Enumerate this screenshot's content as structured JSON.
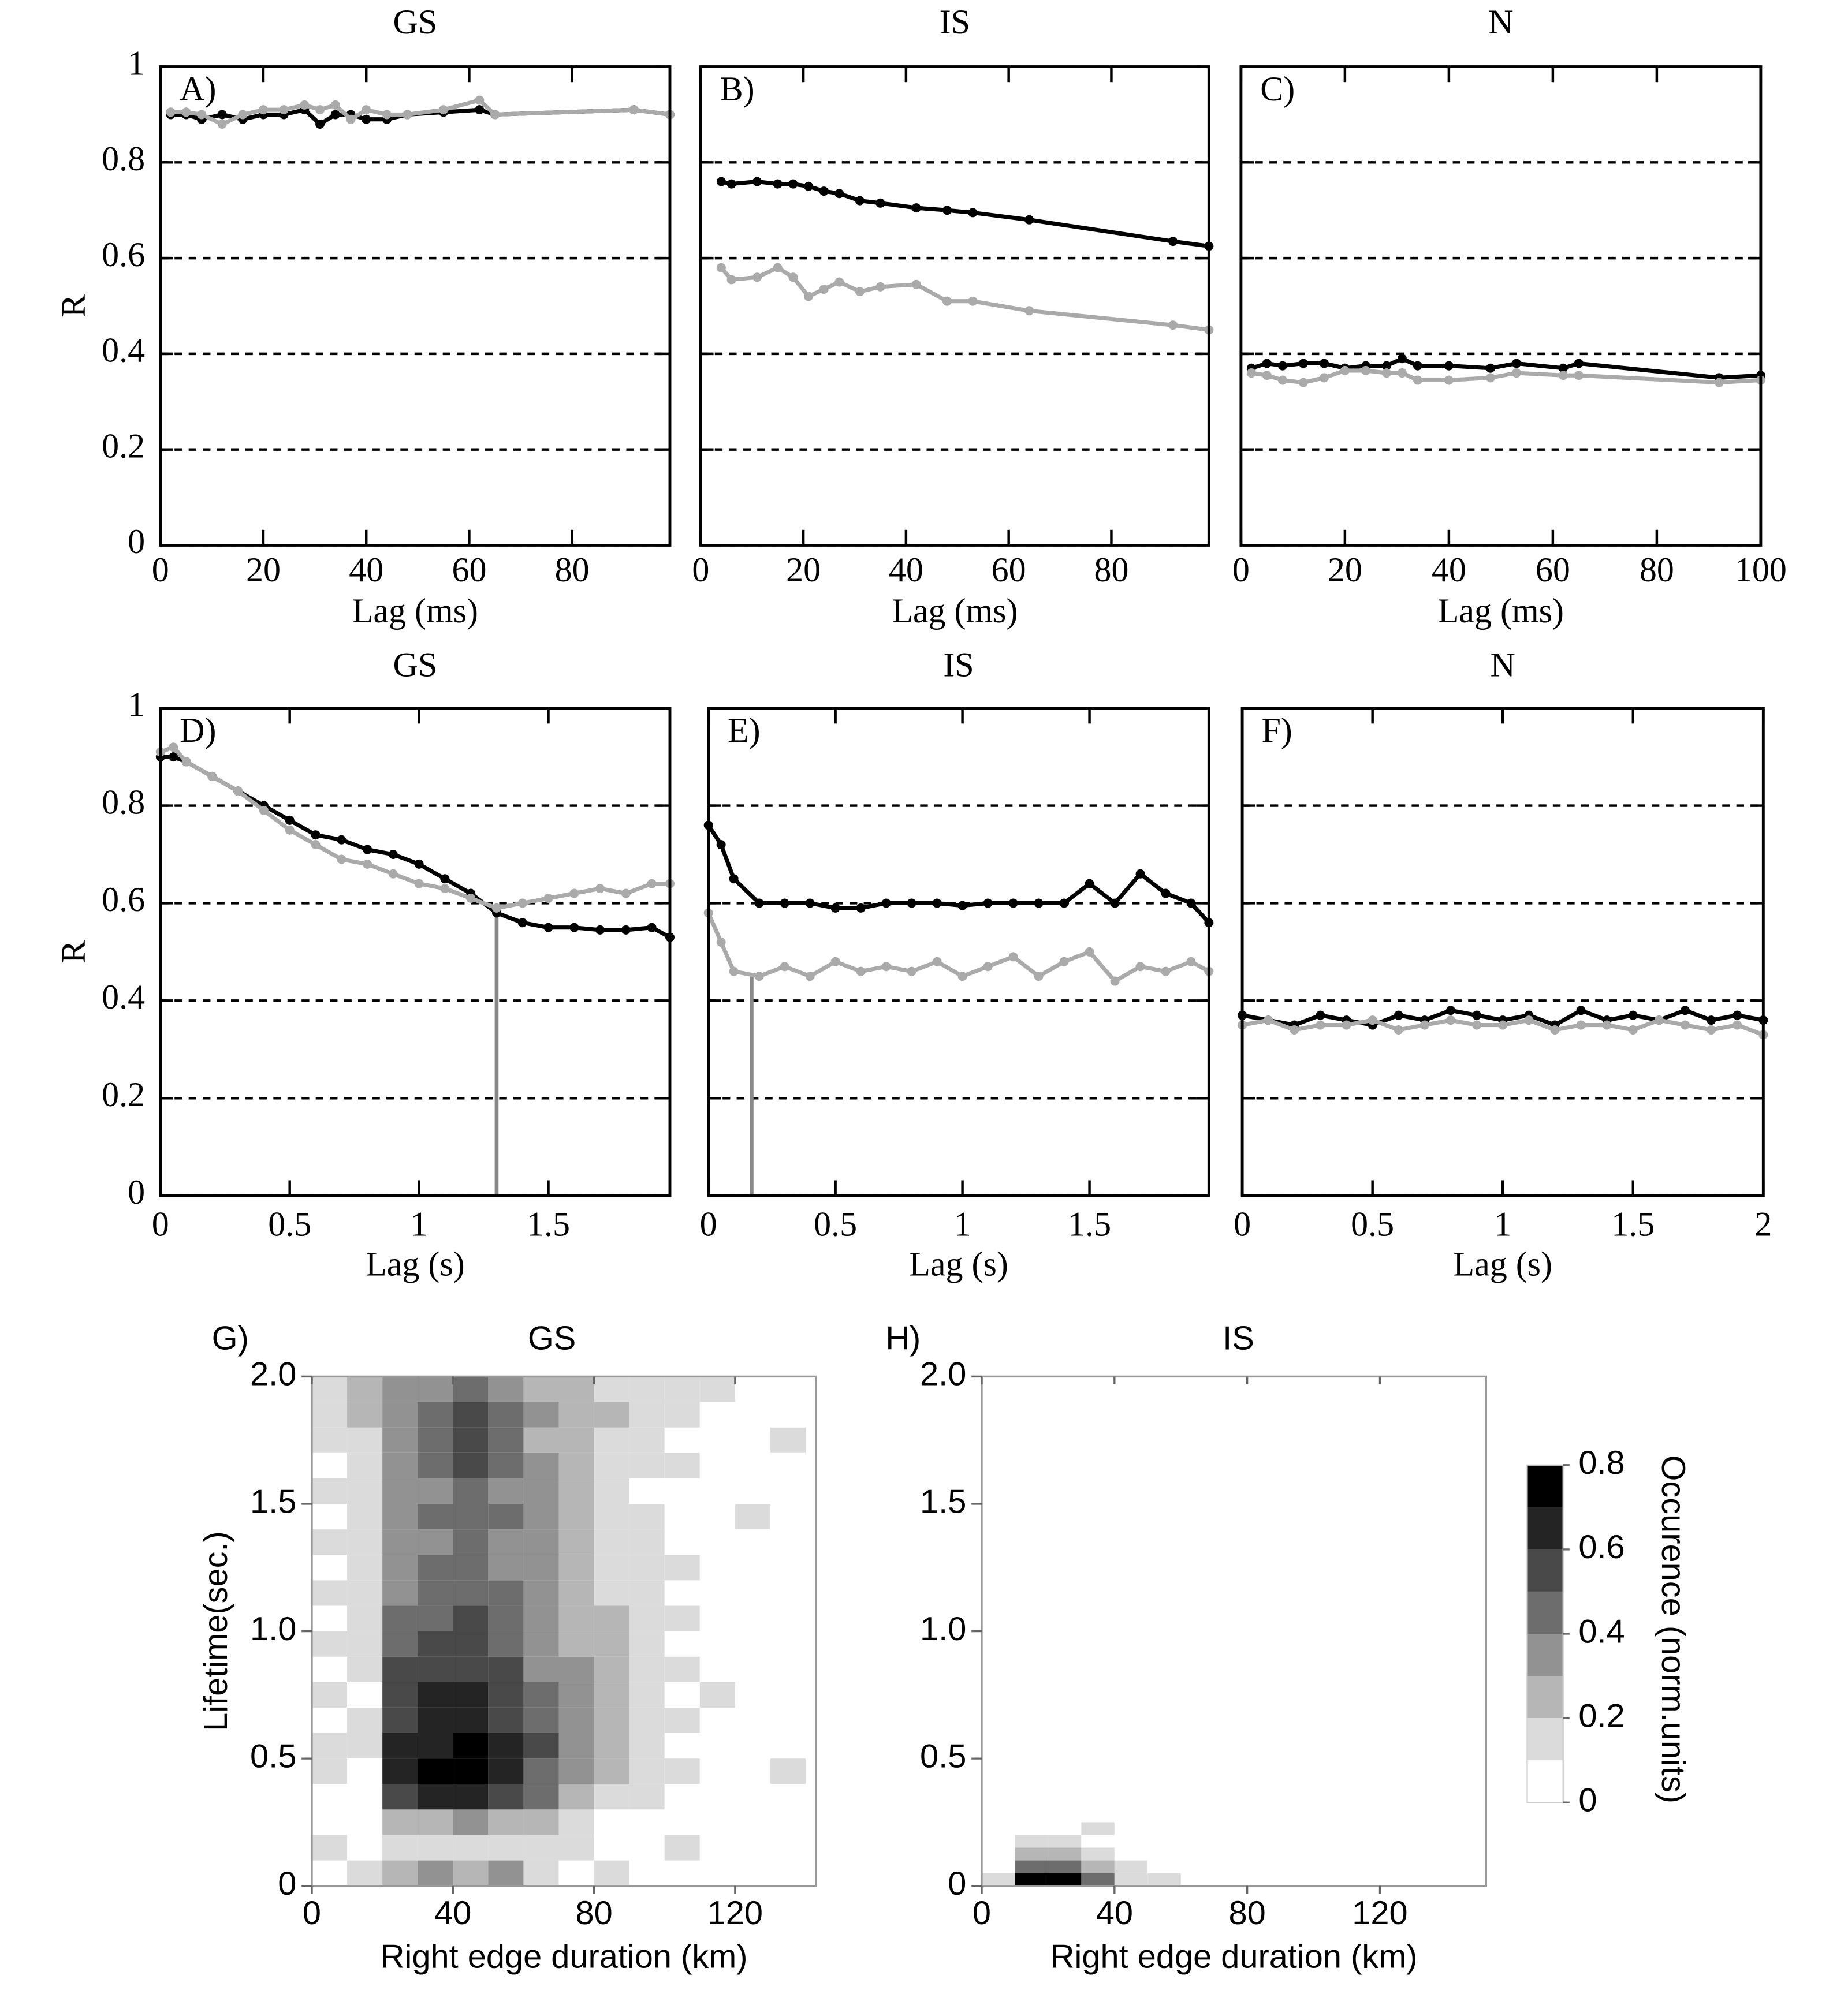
{
  "chart_data": [
    {
      "type": "line",
      "title": "GS",
      "panel_label": "A)",
      "xlabel": "Lag (ms)",
      "ylabel": "R",
      "x": [
        2,
        5,
        8,
        12,
        16,
        20,
        24,
        28,
        31,
        34,
        37,
        40,
        44,
        48,
        55,
        62,
        65,
        92,
        99
      ],
      "series": [
        {
          "color": "#000000",
          "values": [
            0.9,
            0.9,
            0.89,
            0.9,
            0.89,
            0.9,
            0.9,
            0.91,
            0.88,
            0.9,
            0.9,
            0.89,
            0.89,
            0.9,
            0.905,
            0.91,
            0.9,
            0.91,
            0.9
          ]
        },
        {
          "color": "#aaaaaa",
          "values": [
            0.905,
            0.905,
            0.9,
            0.88,
            0.9,
            0.91,
            0.91,
            0.92,
            0.91,
            0.92,
            0.89,
            0.91,
            0.9,
            0.9,
            0.91,
            0.93,
            0.9,
            0.91,
            0.9
          ]
        }
      ],
      "xlim": [
        0,
        99
      ],
      "ylim": [
        0,
        1
      ],
      "xticks": [
        0,
        20,
        40,
        60,
        80
      ],
      "yticks": [
        0,
        0.2,
        0.4,
        0.6,
        0.8,
        1
      ],
      "grid": true
    },
    {
      "type": "line",
      "title": "IS",
      "panel_label": "B)",
      "xlabel": "Lag (ms)",
      "x": [
        4,
        6,
        11,
        15,
        18,
        21,
        24,
        27,
        31,
        35,
        42,
        48,
        53,
        64,
        92,
        99
      ],
      "series": [
        {
          "color": "#000000",
          "values": [
            0.76,
            0.755,
            0.76,
            0.755,
            0.755,
            0.75,
            0.74,
            0.735,
            0.72,
            0.715,
            0.705,
            0.7,
            0.695,
            0.68,
            0.635,
            0.625
          ]
        },
        {
          "color": "#aaaaaa",
          "values": [
            0.58,
            0.555,
            0.56,
            0.58,
            0.56,
            0.52,
            0.535,
            0.55,
            0.53,
            0.54,
            0.545,
            0.51,
            0.51,
            0.49,
            0.46,
            0.45
          ]
        }
      ],
      "xlim": [
        0,
        99
      ],
      "ylim": [
        0,
        1
      ],
      "xticks": [
        0,
        20,
        40,
        60,
        80
      ],
      "yticks": [
        0,
        0.2,
        0.4,
        0.6,
        0.8,
        1
      ],
      "grid": true
    },
    {
      "type": "line",
      "title": "N",
      "panel_label": "C)",
      "xlabel": "Lag (ms)",
      "x": [
        2,
        5,
        8,
        12,
        16,
        20,
        24,
        28,
        31,
        34,
        40,
        48,
        53,
        62,
        65,
        92,
        100
      ],
      "series": [
        {
          "color": "#000000",
          "values": [
            0.37,
            0.38,
            0.375,
            0.38,
            0.38,
            0.37,
            0.375,
            0.375,
            0.39,
            0.375,
            0.375,
            0.37,
            0.38,
            0.37,
            0.38,
            0.35,
            0.355
          ]
        },
        {
          "color": "#aaaaaa",
          "values": [
            0.36,
            0.355,
            0.345,
            0.34,
            0.35,
            0.365,
            0.365,
            0.36,
            0.36,
            0.345,
            0.345,
            0.35,
            0.36,
            0.355,
            0.355,
            0.34,
            0.345
          ]
        }
      ],
      "xlim": [
        0,
        100
      ],
      "ylim": [
        0,
        1
      ],
      "xticks": [
        0,
        20,
        40,
        60,
        80,
        100
      ],
      "yticks": [
        0,
        0.2,
        0.4,
        0.6,
        0.8,
        1
      ],
      "grid": true
    },
    {
      "type": "line",
      "title": "GS",
      "panel_label": "D)",
      "xlabel": "Lag (s)",
      "ylabel": "R",
      "x": [
        0,
        0.05,
        0.1,
        0.2,
        0.3,
        0.4,
        0.5,
        0.6,
        0.7,
        0.8,
        0.9,
        1,
        1.1,
        1.2,
        1.3,
        1.4,
        1.5,
        1.6,
        1.7,
        1.8,
        1.9,
        1.97
      ],
      "series": [
        {
          "color": "#000000",
          "values": [
            0.9,
            0.9,
            0.89,
            0.86,
            0.83,
            0.8,
            0.77,
            0.74,
            0.73,
            0.71,
            0.7,
            0.68,
            0.65,
            0.62,
            0.58,
            0.56,
            0.55,
            0.55,
            0.545,
            0.545,
            0.55,
            0.53
          ]
        },
        {
          "color": "#aaaaaa",
          "values": [
            0.91,
            0.92,
            0.89,
            0.86,
            0.83,
            0.79,
            0.75,
            0.72,
            0.69,
            0.68,
            0.66,
            0.64,
            0.63,
            0.61,
            0.59,
            0.6,
            0.61,
            0.62,
            0.63,
            0.62,
            0.64,
            0.64
          ]
        }
      ],
      "vline": 1.3,
      "vline_color": "#888888",
      "xlim": [
        0,
        1.97
      ],
      "ylim": [
        0,
        1
      ],
      "xticks": [
        0,
        0.5,
        1,
        1.5
      ],
      "yticks": [
        0,
        0.2,
        0.4,
        0.6,
        0.8,
        1
      ],
      "grid": true
    },
    {
      "type": "line",
      "title": "IS",
      "panel_label": "E)",
      "xlabel": "Lag (s)",
      "x": [
        0,
        0.05,
        0.1,
        0.2,
        0.3,
        0.4,
        0.5,
        0.6,
        0.7,
        0.8,
        0.9,
        1,
        1.1,
        1.2,
        1.3,
        1.4,
        1.5,
        1.6,
        1.7,
        1.8,
        1.9,
        1.97
      ],
      "series": [
        {
          "color": "#000000",
          "values": [
            0.76,
            0.72,
            0.65,
            0.6,
            0.6,
            0.6,
            0.59,
            0.59,
            0.6,
            0.6,
            0.6,
            0.595,
            0.6,
            0.6,
            0.6,
            0.6,
            0.64,
            0.6,
            0.66,
            0.62,
            0.6,
            0.56
          ]
        },
        {
          "color": "#aaaaaa",
          "values": [
            0.58,
            0.52,
            0.46,
            0.45,
            0.47,
            0.45,
            0.48,
            0.46,
            0.47,
            0.46,
            0.48,
            0.45,
            0.47,
            0.49,
            0.45,
            0.48,
            0.5,
            0.44,
            0.47,
            0.46,
            0.48,
            0.46
          ]
        }
      ],
      "vline": 0.17,
      "vline_color": "#888888",
      "xlim": [
        0,
        1.97
      ],
      "ylim": [
        0,
        1
      ],
      "xticks": [
        0,
        0.5,
        1,
        1.5
      ],
      "yticks": [
        0,
        0.2,
        0.4,
        0.6,
        0.8,
        1
      ],
      "grid": true
    },
    {
      "type": "line",
      "title": "N",
      "panel_label": "F)",
      "xlabel": "Lag (s)",
      "x": [
        0,
        0.1,
        0.2,
        0.3,
        0.4,
        0.5,
        0.6,
        0.7,
        0.8,
        0.9,
        1,
        1.1,
        1.2,
        1.3,
        1.4,
        1.5,
        1.6,
        1.7,
        1.8,
        1.9,
        2
      ],
      "series": [
        {
          "color": "#000000",
          "values": [
            0.37,
            0.36,
            0.35,
            0.37,
            0.36,
            0.35,
            0.37,
            0.36,
            0.38,
            0.37,
            0.36,
            0.37,
            0.35,
            0.38,
            0.36,
            0.37,
            0.36,
            0.38,
            0.36,
            0.37,
            0.36
          ]
        },
        {
          "color": "#aaaaaa",
          "values": [
            0.35,
            0.36,
            0.34,
            0.35,
            0.35,
            0.36,
            0.34,
            0.35,
            0.36,
            0.35,
            0.35,
            0.36,
            0.34,
            0.35,
            0.35,
            0.34,
            0.36,
            0.35,
            0.34,
            0.35,
            0.33
          ]
        }
      ],
      "xlim": [
        0,
        2
      ],
      "ylim": [
        0,
        1
      ],
      "xticks": [
        0,
        0.5,
        1,
        1.5,
        2
      ],
      "yticks": [
        0,
        0.2,
        0.4,
        0.6,
        0.8,
        1
      ],
      "grid": true
    },
    {
      "type": "heatmap",
      "title": "GS",
      "panel_label": "G)",
      "xlabel": "Right edge duration (km)",
      "ylabel": "Lifetime(sec.)",
      "x_bins": [
        0,
        10,
        20,
        30,
        40,
        50,
        60,
        70,
        80,
        90,
        100,
        110,
        120,
        130,
        140
      ],
      "y_bins": [
        0,
        0.1,
        0.2,
        0.3,
        0.4,
        0.5,
        0.6,
        0.7,
        0.8,
        0.9,
        1,
        1.1,
        1.2,
        1.3,
        1.4,
        1.5,
        1.6,
        1.7,
        1.8,
        1.9,
        2
      ],
      "values": [
        [
          0,
          0.1,
          0.2,
          0.3,
          0.2,
          0.3,
          0.1,
          0,
          0.1,
          0,
          0,
          0,
          0,
          0
        ],
        [
          0.1,
          0,
          0.1,
          0.1,
          0.1,
          0.1,
          0.1,
          0.1,
          0,
          0,
          0.1,
          0,
          0,
          0
        ],
        [
          0,
          0,
          0.2,
          0.2,
          0.3,
          0.2,
          0.2,
          0.1,
          0,
          0,
          0,
          0,
          0,
          0
        ],
        [
          0,
          0,
          0.5,
          0.6,
          0.6,
          0.5,
          0.4,
          0.2,
          0.1,
          0.1,
          0,
          0,
          0,
          0
        ],
        [
          0.1,
          0,
          0.6,
          0.7,
          0.7,
          0.6,
          0.4,
          0.3,
          0.2,
          0.1,
          0.1,
          0,
          0,
          0.1
        ],
        [
          0.1,
          0.1,
          0.6,
          0.6,
          0.7,
          0.6,
          0.5,
          0.3,
          0.2,
          0.1,
          0,
          0,
          0,
          0
        ],
        [
          0,
          0.1,
          0.5,
          0.6,
          0.6,
          0.5,
          0.4,
          0.3,
          0.2,
          0.1,
          0.1,
          0,
          0,
          0
        ],
        [
          0.1,
          0,
          0.5,
          0.6,
          0.6,
          0.5,
          0.4,
          0.3,
          0.2,
          0.1,
          0,
          0.1,
          0,
          0
        ],
        [
          0,
          0.1,
          0.5,
          0.5,
          0.5,
          0.5,
          0.3,
          0.3,
          0.2,
          0.1,
          0.1,
          0,
          0,
          0
        ],
        [
          0.1,
          0.1,
          0.4,
          0.5,
          0.5,
          0.4,
          0.3,
          0.2,
          0.2,
          0.1,
          0,
          0,
          0,
          0
        ],
        [
          0,
          0.1,
          0.4,
          0.4,
          0.5,
          0.4,
          0.3,
          0.2,
          0.2,
          0.1,
          0.1,
          0,
          0,
          0
        ],
        [
          0.1,
          0.1,
          0.3,
          0.4,
          0.4,
          0.4,
          0.3,
          0.2,
          0.1,
          0.1,
          0,
          0,
          0,
          0
        ],
        [
          0,
          0.1,
          0.3,
          0.4,
          0.4,
          0.3,
          0.3,
          0.2,
          0.1,
          0.1,
          0.1,
          0,
          0,
          0
        ],
        [
          0.1,
          0.1,
          0.3,
          0.3,
          0.4,
          0.3,
          0.3,
          0.2,
          0.1,
          0.1,
          0,
          0,
          0,
          0
        ],
        [
          0,
          0.1,
          0.3,
          0.4,
          0.4,
          0.4,
          0.3,
          0.2,
          0.1,
          0.1,
          0,
          0,
          0.1,
          0
        ],
        [
          0.1,
          0.1,
          0.3,
          0.3,
          0.4,
          0.3,
          0.3,
          0.2,
          0.1,
          0,
          0,
          0,
          0,
          0
        ],
        [
          0,
          0.1,
          0.3,
          0.4,
          0.5,
          0.4,
          0.3,
          0.2,
          0.1,
          0.1,
          0.1,
          0,
          0,
          0
        ],
        [
          0.1,
          0.1,
          0.3,
          0.4,
          0.5,
          0.4,
          0.2,
          0.2,
          0.1,
          0.1,
          0,
          0,
          0,
          0.1
        ],
        [
          0.1,
          0.2,
          0.3,
          0.4,
          0.5,
          0.4,
          0.3,
          0.2,
          0.2,
          0.1,
          0.1,
          0,
          0,
          0
        ],
        [
          0.1,
          0.2,
          0.3,
          0.3,
          0.4,
          0.3,
          0.2,
          0.2,
          0.1,
          0.1,
          0.1,
          0.1,
          0,
          0
        ]
      ],
      "xlim": [
        0,
        143
      ],
      "ylim": [
        0,
        2
      ],
      "xticks": [
        0,
        40,
        80,
        120
      ],
      "yticks": [
        0,
        0.5,
        {
          "value": 1,
          "label": "1.0"
        },
        1.5,
        {
          "value": 2,
          "label": "2.0"
        }
      ],
      "clim": [
        0,
        0.8
      ]
    },
    {
      "type": "heatmap",
      "title": "IS",
      "panel_label": "H)",
      "xlabel": "Right edge duration (km)",
      "x_bins": [
        0,
        10,
        20,
        30,
        40,
        50,
        60
      ],
      "y_bins": [
        0,
        0.05,
        0.1,
        0.15,
        0.2,
        0.25
      ],
      "values": [
        [
          0.1,
          0.8,
          0.8,
          0.4,
          0.1,
          0.1
        ],
        [
          0,
          0.4,
          0.4,
          0.2,
          0.1,
          0
        ],
        [
          0,
          0.2,
          0.2,
          0.1,
          0,
          0
        ],
        [
          0,
          0.1,
          0.1,
          0,
          0,
          0
        ],
        [
          0,
          0,
          0,
          0.1,
          0,
          0
        ]
      ],
      "xlim": [
        0,
        152
      ],
      "ylim": [
        0,
        2
      ],
      "xticks": [
        0,
        40,
        80,
        120
      ],
      "yticks": [
        0,
        0.5,
        {
          "value": 1,
          "label": "1.0"
        },
        1.5,
        {
          "value": 2,
          "label": "2.0"
        }
      ],
      "clim": [
        0,
        0.8
      ],
      "colorbar": {
        "label": "Occurence (norm.units)",
        "levels": [
          0,
          0.1,
          0.2,
          0.3,
          0.4,
          0.5,
          0.6,
          0.7,
          0.8
        ],
        "ticks": [
          0,
          0.2,
          0.4,
          0.6,
          0.8
        ]
      }
    }
  ]
}
